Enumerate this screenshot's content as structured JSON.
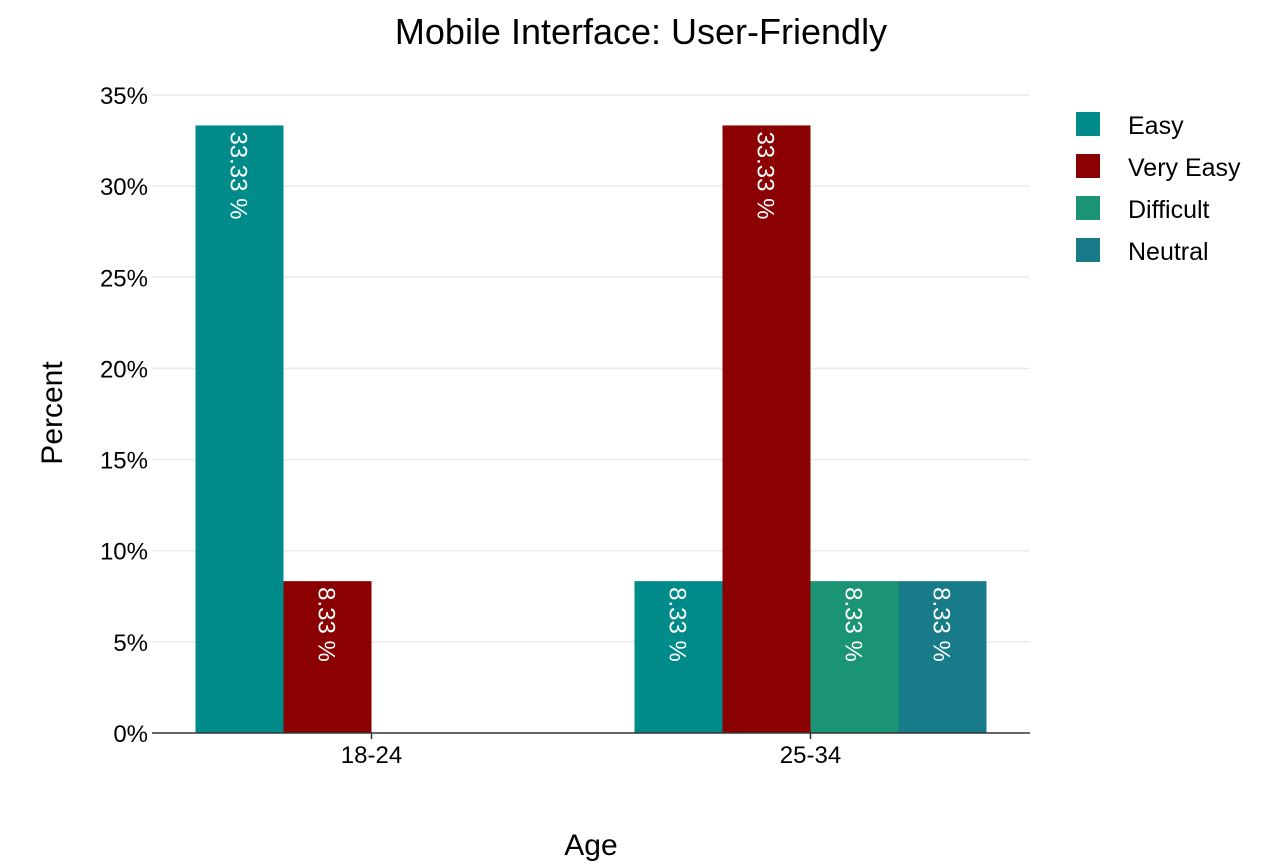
{
  "chart_data": {
    "type": "bar",
    "title": "Mobile Interface: User-Friendly",
    "xlabel": "Age",
    "ylabel": "Percent",
    "categories": [
      "18-24",
      "25-34"
    ],
    "ylim": [
      0,
      35
    ],
    "yticks": [
      0,
      5,
      10,
      15,
      20,
      25,
      30,
      35
    ],
    "ytick_labels": [
      "0%",
      "5%",
      "10%",
      "15%",
      "20%",
      "25%",
      "30%",
      "35%"
    ],
    "grid": true,
    "legend_position": "top-right",
    "series": [
      {
        "name": "Easy",
        "color": "#008B8B",
        "values": [
          33.33,
          8.33
        ],
        "labels": [
          "33.33 %",
          "8.33 %"
        ]
      },
      {
        "name": "Very Easy",
        "color": "#8B0000",
        "values": [
          8.33,
          33.33
        ],
        "labels": [
          "8.33 %",
          "33.33 %"
        ]
      },
      {
        "name": "Difficult",
        "color": "#1A9473",
        "values": [
          null,
          8.33
        ],
        "labels": [
          "",
          "8.33 %"
        ]
      },
      {
        "name": "Neutral",
        "color": "#177B89",
        "values": [
          null,
          8.33
        ],
        "labels": [
          "",
          "8.33 %"
        ]
      }
    ]
  }
}
